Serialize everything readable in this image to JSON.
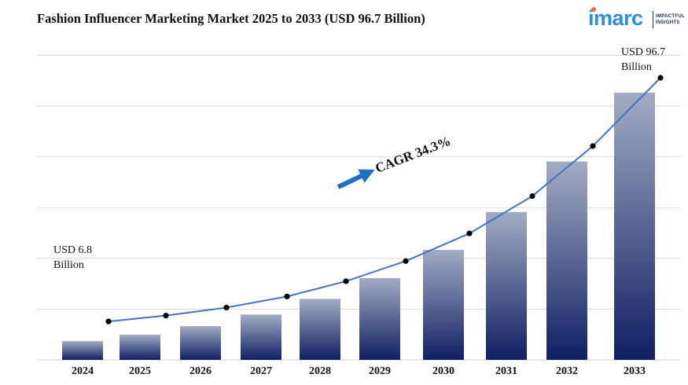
{
  "header": {
    "title": "Fashion Influencer Marketing Market 2025 to 2033 (USD 96.7 Billion)"
  },
  "logo": {
    "word": "imarc",
    "tagline_1": "IMPACTFUL",
    "tagline_2": "INSIGHTS",
    "brand_color": "#2a8fdc",
    "dot_color": "#f26a3a"
  },
  "annotations": {
    "start_line1": "USD 6.8",
    "start_line2": "Billion",
    "end_line1": "USD 96.7",
    "end_line2": "Billion",
    "cagr": "CAGR 34.3%"
  },
  "chart_data": {
    "type": "bar",
    "categories": [
      "2024",
      "2025",
      "2026",
      "2027",
      "2028",
      "2029",
      "2030",
      "2031",
      "2032",
      "2033"
    ],
    "values": [
      6.8,
      9.1,
      12.2,
      16.4,
      22.1,
      29.6,
      39.8,
      53.5,
      71.8,
      96.7
    ],
    "overlay_line": true,
    "title": "Fashion Influencer Marketing Market 2025 to 2033 (USD 96.7 Billion)",
    "xlabel": "",
    "ylabel": "",
    "grid": true,
    "legend": "none",
    "colors": {
      "bar_top": "#a2acc3",
      "bar_bottom": "#0f1f63",
      "line": "#4472c4",
      "marker": "#000000",
      "arrow": "#1f6fc5",
      "grid": "#d0d0d0"
    }
  }
}
